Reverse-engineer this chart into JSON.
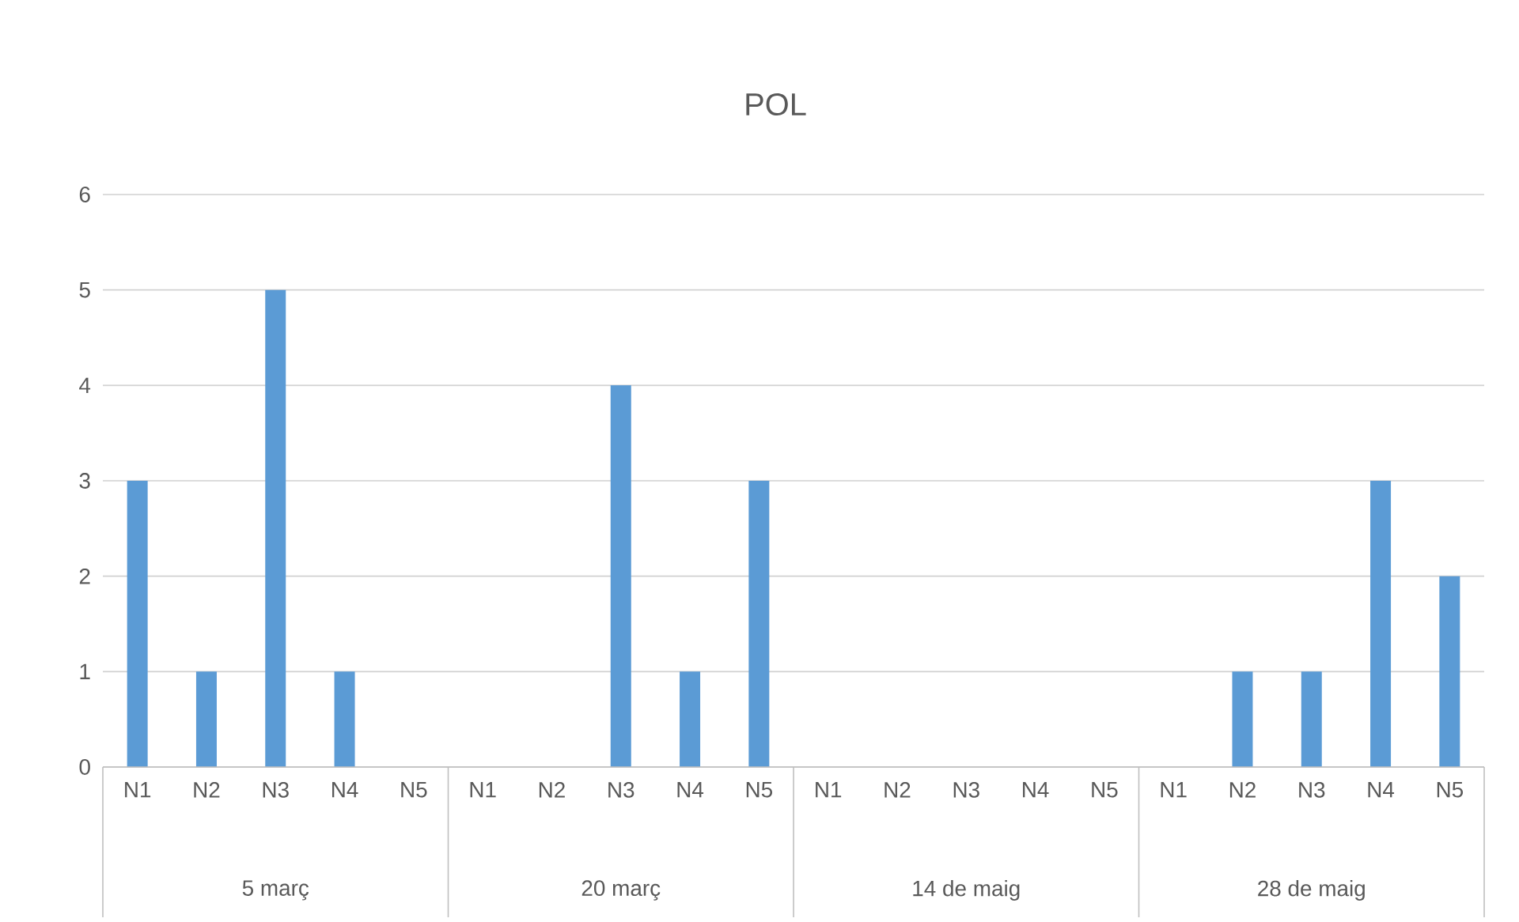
{
  "chart_data": {
    "type": "bar",
    "title": "POL",
    "categories": [
      "N1",
      "N2",
      "N3",
      "N4",
      "N5",
      "N1",
      "N2",
      "N3",
      "N4",
      "N5",
      "N1",
      "N2",
      "N3",
      "N4",
      "N5",
      "N1",
      "N2",
      "N3",
      "N4",
      "N5"
    ],
    "values": [
      3,
      1,
      5,
      1,
      0,
      0,
      0,
      4,
      1,
      3,
      0,
      0,
      0,
      0,
      0,
      0,
      1,
      1,
      3,
      2
    ],
    "color": "#5b9bd5",
    "ylim": [
      0,
      6
    ],
    "yticks": [
      0,
      1,
      2,
      3,
      4,
      5,
      6
    ],
    "grid": "y",
    "annotations": [
      "5 març",
      "20 març",
      "14 de maig",
      "28 de maig"
    ]
  }
}
